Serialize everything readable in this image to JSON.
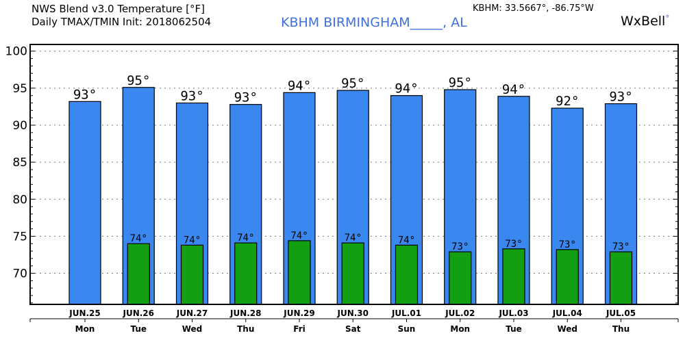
{
  "header": {
    "title_line1": "NWS Blend v3.0 Temperature [°F]",
    "title_line2": "Daily TMAX/TMIN Init: 2018062504",
    "station": "KBHM BIRMINGHAM_____, AL",
    "coords": "KBHM: 33.5667°, -86.75°W",
    "brand": "WxBell",
    "brand_dot": "°"
  },
  "colors": {
    "tmax": "#3a87f0",
    "tmin": "#12a012"
  },
  "chart_data": {
    "type": "bar",
    "title": "NWS Blend v3.0 Temperature [°F]",
    "subtitle": "Daily TMAX/TMIN Init: 2018062504",
    "xlabel": "",
    "ylabel": "",
    "ylim": [
      65.8,
      100.9
    ],
    "yticks": [
      70,
      75,
      80,
      85,
      90,
      95,
      100
    ],
    "grid": true,
    "categories": [
      "JUN.25",
      "JUN.26",
      "JUN.27",
      "JUN.28",
      "JUN.29",
      "JUN.30",
      "JUL.01",
      "JUL.02",
      "JUL.03",
      "JUL.04",
      "JUL.05"
    ],
    "weekdays": [
      "Mon",
      "Tue",
      "Wed",
      "Thu",
      "Fri",
      "Sat",
      "Sun",
      "Mon",
      "Tue",
      "Wed",
      "Thu"
    ],
    "series": [
      {
        "name": "TMAX",
        "values": [
          93.2,
          95.1,
          93.0,
          92.8,
          94.4,
          94.7,
          94.0,
          94.8,
          93.9,
          92.3,
          92.9
        ],
        "labels": [
          "93°",
          "95°",
          "93°",
          "93°",
          "94°",
          "95°",
          "94°",
          "95°",
          "94°",
          "92°",
          "93°"
        ]
      },
      {
        "name": "TMIN",
        "values": [
          null,
          74.0,
          73.8,
          74.1,
          74.4,
          74.1,
          73.8,
          72.9,
          73.3,
          73.2,
          72.9
        ],
        "labels": [
          "",
          "74°",
          "74°",
          "74°",
          "74°",
          "74°",
          "74°",
          "73°",
          "73°",
          "73°",
          "73°"
        ]
      }
    ]
  }
}
